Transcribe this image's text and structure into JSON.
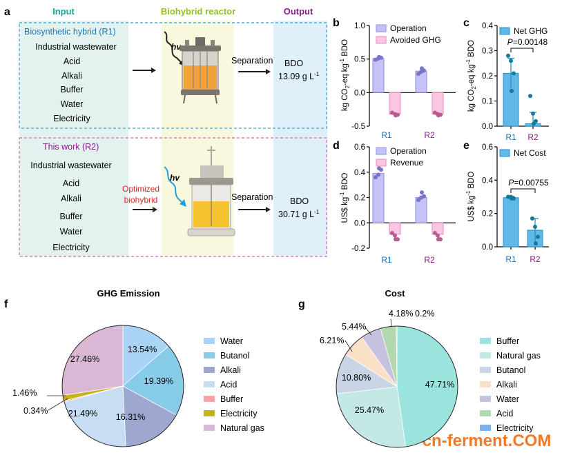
{
  "panel_a": {
    "letter": "a",
    "headers": {
      "input": "Input",
      "reactor": "Biohybrid reactor",
      "output": "Output"
    },
    "colors": {
      "input": "#1fa39a",
      "reactor": "#8fc31f",
      "output": "#8a1f8a",
      "r1_border": "#3b9fd6",
      "r2_border": "#d46ab0",
      "r1_title": "#1d76b8",
      "r2_title": "#8b1a8b",
      "optimized": "#d42a2a"
    },
    "r1": {
      "title": "Biosynthetic hybrid (R1)",
      "inputs": [
        "Industrial wastewater",
        "Acid",
        "Alkali",
        "Buffer",
        "Water",
        "Electricity"
      ],
      "hv": "hv",
      "separation": "Separation",
      "product": "BDO",
      "titer_value": "13.09 g L",
      "titer_exp": "-1"
    },
    "r2": {
      "title": "This work (R2)",
      "inputs": [
        "Industrial wastewater",
        "Acid",
        "Alkali",
        "Buffer",
        "Water",
        "Electricity"
      ],
      "hv": "hv",
      "optimized": [
        "Optimized",
        "biohybrid"
      ],
      "separation": "Separation",
      "product": "BDO",
      "titer_value": "30.71 g L",
      "titer_exp": "-1"
    }
  },
  "chart_data": [
    {
      "panel": "b",
      "type": "bar",
      "categories": [
        "R1",
        "R2"
      ],
      "series": [
        {
          "name": "Operation",
          "values": [
            0.51,
            0.32
          ],
          "points": [
            [
              0.49,
              0.51,
              0.52,
              0.53
            ],
            [
              0.28,
              0.31,
              0.33,
              0.36
            ]
          ]
        },
        {
          "name": "Avoided GHG",
          "values": [
            -0.32,
            -0.32
          ],
          "points": [
            [
              -0.3,
              -0.32,
              -0.33,
              -0.34
            ],
            [
              -0.3,
              -0.32,
              -0.33,
              -0.34
            ]
          ]
        }
      ],
      "ylabel": "kg CO2-eq kg-1 BDO",
      "ylim": [
        -0.5,
        1.0
      ],
      "yticks": [
        "-0.5",
        "0.0",
        "0.5",
        "1.0"
      ],
      "ytick_values": [
        -0.5,
        0.0,
        0.5,
        1.0
      ]
    },
    {
      "panel": "c",
      "type": "bar",
      "categories": [
        "R1",
        "R2"
      ],
      "series": [
        {
          "name": "Net GHG",
          "values": [
            0.21,
            0.01
          ],
          "errors": [
            0.06,
            0.045
          ],
          "points": [
            [
              0.28,
              0.26,
              0.21,
              0.14
            ],
            [
              0.12,
              0.05,
              0.02,
              0.01
            ]
          ]
        }
      ],
      "annotation": "P=0.00148",
      "ylabel": "kg CO2-eq kg-1 BDO",
      "ylim": [
        0,
        0.4
      ],
      "yticks": [
        "0.0",
        "0.1",
        "0.2",
        "0.3",
        "0.4"
      ],
      "ytick_values": [
        0,
        0.1,
        0.2,
        0.3,
        0.4
      ]
    },
    {
      "panel": "d",
      "type": "bar",
      "categories": [
        "R1",
        "R2"
      ],
      "series": [
        {
          "name": "Operation",
          "values": [
            0.39,
            0.2
          ],
          "points": [
            [
              0.36,
              0.38,
              0.42,
              0.43
            ],
            [
              0.18,
              0.2,
              0.21,
              0.24
            ]
          ]
        },
        {
          "name": "Revenue",
          "values": [
            -0.09,
            -0.09
          ],
          "points": [
            [
              -0.08,
              -0.1,
              -0.13,
              -0.13
            ],
            [
              -0.08,
              -0.1,
              -0.13,
              -0.13
            ]
          ]
        }
      ],
      "ylabel": "US$ kg-1 BDO",
      "ylim": [
        -0.2,
        0.6
      ],
      "yticks": [
        "-0.2",
        "0.0",
        "0.2",
        "0.4",
        "0.6"
      ],
      "ytick_values": [
        -0.2,
        0.0,
        0.2,
        0.4,
        0.6
      ]
    },
    {
      "panel": "e",
      "type": "bar",
      "categories": [
        "R1",
        "R2"
      ],
      "series": [
        {
          "name": "Net Cost",
          "values": [
            0.295,
            0.1
          ],
          "errors": [
            0.008,
            0.07
          ],
          "points": [
            [
              0.3,
              0.3,
              0.29,
              0.29
            ],
            [
              0.17,
              0.12,
              0.06,
              0.02
            ]
          ]
        }
      ],
      "annotation": "P=0.00755",
      "ylabel": "US$ kg-1 BDO",
      "ylim": [
        0,
        0.6
      ],
      "yticks": [
        "0.0",
        "0.2",
        "0.4",
        "0.6"
      ],
      "ytick_values": [
        0,
        0.2,
        0.4,
        0.6
      ]
    },
    {
      "panel": "f",
      "type": "pie",
      "title": "GHG Emission",
      "labels": [
        "Water",
        "Butanol",
        "Alkali",
        "Acid",
        "Buffer",
        "Electricity",
        "Natural gas"
      ],
      "values": [
        13.54,
        19.39,
        16.31,
        21.49,
        0.34,
        1.46,
        27.46
      ],
      "value_labels": [
        "13.54%",
        "19.39%",
        "16.31%",
        "21.49%",
        "0.34%",
        "1.46%",
        "27.46%"
      ],
      "colors": [
        "#a9d4f5",
        "#86cbe8",
        "#9ea7d0",
        "#c6ddf3",
        "#f4a5a5",
        "#c4b41a",
        "#dab7d4"
      ]
    },
    {
      "panel": "g",
      "type": "pie",
      "title": "Cost",
      "labels": [
        "Buffer",
        "Natural gas",
        "Butanol",
        "Alkali",
        "Water",
        "Acid",
        "Electricity"
      ],
      "values": [
        47.71,
        25.47,
        10.8,
        6.21,
        5.44,
        4.18,
        0.2
      ],
      "value_labels": [
        "47.71%",
        "25.47%",
        "10.80%",
        "6.21%",
        "5.44%",
        "4.18%",
        "0.2%"
      ],
      "colors": [
        "#9be3dd",
        "#c4e8e6",
        "#c9d4e4",
        "#fbe0c8",
        "#c7c1e0",
        "#b2d8b0",
        "#7fb2ec"
      ]
    }
  ],
  "bar_colors": {
    "operation_fill": "#c5c3f5",
    "operation_stroke": "#8c89e2",
    "operation_dot": "#7875c8",
    "negative_fill": "#fbc6e2",
    "negative_stroke": "#e58bbd",
    "negative_dot": "#b45c8f",
    "net_fill": "#5eb8e8",
    "net_stroke": "#2f8ec2",
    "net_dot": "#147a9a",
    "r1_label": "#1a6fb0",
    "r2_label": "#8b1a8b"
  },
  "watermark": "cn-ferment.COM",
  "panel_letters": [
    "a",
    "b",
    "c",
    "d",
    "e",
    "f",
    "g"
  ]
}
